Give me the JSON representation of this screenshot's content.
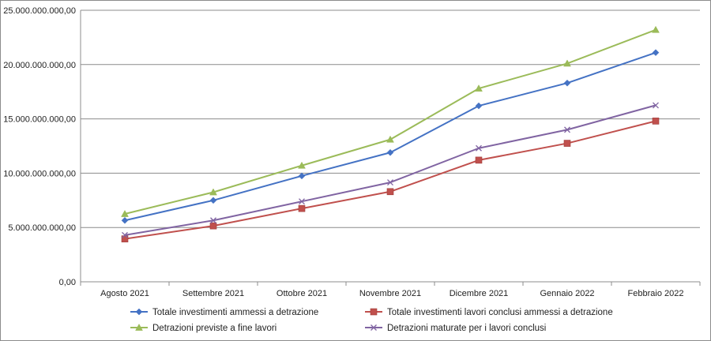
{
  "chart_data": {
    "type": "line",
    "categories": [
      "Agosto 2021",
      "Settembre 2021",
      "Ottobre 2021",
      "Novembre 2021",
      "Dicembre 2021",
      "Gennaio 2022",
      "Febbraio 2022"
    ],
    "ylim": [
      0,
      25000000000
    ],
    "yticks": [
      0,
      5000000000,
      10000000000,
      15000000000,
      20000000000,
      25000000000
    ],
    "ytick_labels": [
      "0,00",
      "5.000.000.000,00",
      "10.000.000.000,00",
      "15.000.000.000,00",
      "20.000.000.000,00",
      "25.000.000.000,00"
    ],
    "grid": true,
    "legend_position": "bottom",
    "series": [
      {
        "name": "Totale investimenti ammessi a detrazione",
        "color": "#4472C4",
        "marker": "diamond",
        "values": [
          5650000000,
          7500000000,
          9750000000,
          11900000000,
          16200000000,
          18300000000,
          21100000000
        ]
      },
      {
        "name": "Totale investimenti lavori conclusi ammessi a detrazione",
        "color": "#C0504D",
        "marker": "square",
        "values": [
          3950000000,
          5150000000,
          6750000000,
          8300000000,
          11200000000,
          12750000000,
          14800000000
        ]
      },
      {
        "name": "Detrazioni previste a fine lavori",
        "color": "#9BBB59",
        "marker": "triangle",
        "values": [
          6250000000,
          8250000000,
          10700000000,
          13100000000,
          17800000000,
          20100000000,
          23200000000
        ]
      },
      {
        "name": "Detrazioni maturate per i lavori conclusi",
        "color": "#8064A2",
        "marker": "x",
        "values": [
          4300000000,
          5650000000,
          7400000000,
          9150000000,
          12300000000,
          14000000000,
          16250000000
        ]
      }
    ]
  }
}
